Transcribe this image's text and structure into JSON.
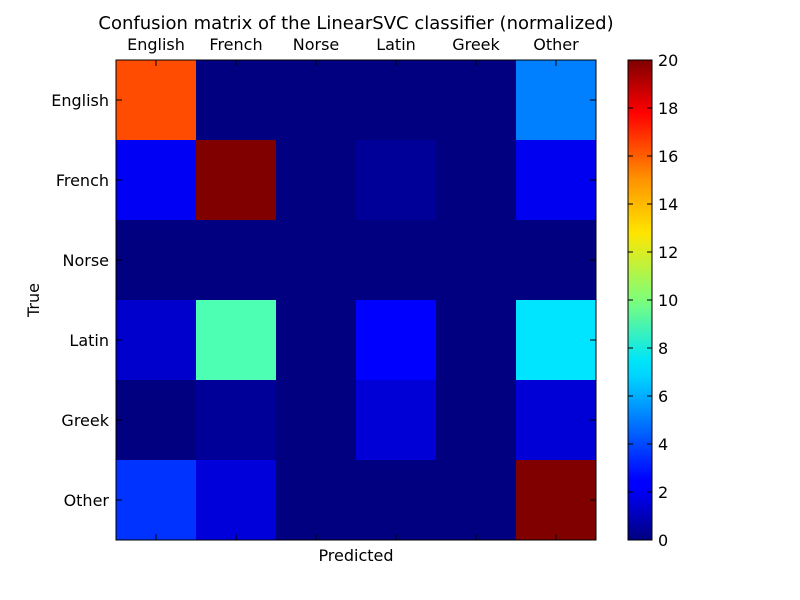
{
  "chart_data": {
    "type": "heatmap",
    "title": "Confusion matrix of the LinearSVC classifier (normalized)",
    "xlabel": "Predicted",
    "ylabel": "True",
    "x_categories": [
      "English",
      "French",
      "Norse",
      "Latin",
      "Greek",
      "Other"
    ],
    "y_categories": [
      "English",
      "French",
      "Norse",
      "Latin",
      "Greek",
      "Other"
    ],
    "values": [
      [
        16,
        0,
        0,
        0,
        0,
        5
      ],
      [
        2.3,
        20,
        0,
        0.5,
        0,
        2.2
      ],
      [
        0,
        0,
        0,
        0,
        0,
        0
      ],
      [
        1.5,
        9,
        0,
        2.5,
        0,
        7
      ],
      [
        0,
        0.5,
        0,
        1.7,
        0,
        1.7
      ],
      [
        3.5,
        1.8,
        0,
        0,
        0,
        20
      ]
    ],
    "colormap": "jet",
    "colorbar": {
      "range": [
        0,
        20
      ],
      "ticks": [
        0,
        2,
        4,
        6,
        8,
        10,
        12,
        14,
        16,
        18,
        20
      ]
    },
    "x_tick_position": "top",
    "grid": false
  }
}
